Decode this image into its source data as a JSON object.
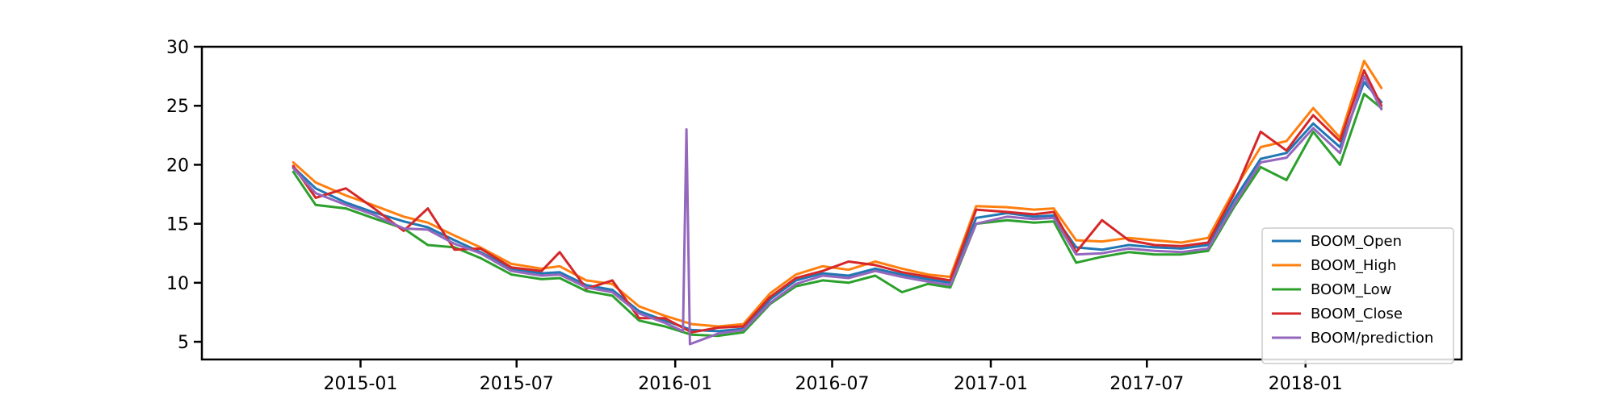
{
  "chart_data": {
    "type": "line",
    "x_axis": {
      "type": "date",
      "range": [
        "2014-07-01",
        "2018-07-01"
      ],
      "ticks": [
        "2015-01",
        "2015-07",
        "2016-01",
        "2016-07",
        "2017-01",
        "2017-07",
        "2018-01"
      ]
    },
    "y_axis": {
      "range": [
        3.5,
        30
      ],
      "ticks": [
        5,
        10,
        15,
        20,
        25,
        30
      ]
    },
    "grid": false,
    "legend_position": "bottom-right",
    "series": [
      {
        "name": "BOOM_Open",
        "color": "#1f77b4",
        "points": [
          [
            "2014-10-15",
            19.8
          ],
          [
            "2014-11-10",
            18.0
          ],
          [
            "2014-12-15",
            16.8
          ],
          [
            "2015-01-15",
            16.0
          ],
          [
            "2015-02-20",
            15.2
          ],
          [
            "2015-03-20",
            14.7
          ],
          [
            "2015-04-20",
            13.6
          ],
          [
            "2015-05-20",
            12.6
          ],
          [
            "2015-06-25",
            11.2
          ],
          [
            "2015-07-30",
            10.8
          ],
          [
            "2015-08-20",
            10.9
          ],
          [
            "2015-09-20",
            9.8
          ],
          [
            "2015-10-20",
            9.4
          ],
          [
            "2015-11-20",
            7.6
          ],
          [
            "2015-12-20",
            6.8
          ],
          [
            "2016-01-20",
            6.0
          ],
          [
            "2016-02-20",
            5.9
          ],
          [
            "2016-03-20",
            6.1
          ],
          [
            "2016-04-20",
            8.6
          ],
          [
            "2016-05-20",
            10.2
          ],
          [
            "2016-06-20",
            10.8
          ],
          [
            "2016-07-20",
            10.6
          ],
          [
            "2016-08-20",
            11.2
          ],
          [
            "2016-09-20",
            10.7
          ],
          [
            "2016-10-20",
            10.3
          ],
          [
            "2016-11-15",
            10.0
          ],
          [
            "2016-12-15",
            15.5
          ],
          [
            "2017-01-20",
            15.9
          ],
          [
            "2017-02-20",
            15.6
          ],
          [
            "2017-03-15",
            15.7
          ],
          [
            "2017-04-10",
            13.0
          ],
          [
            "2017-05-10",
            12.8
          ],
          [
            "2017-06-10",
            13.2
          ],
          [
            "2017-07-10",
            13.0
          ],
          [
            "2017-08-10",
            12.9
          ],
          [
            "2017-09-10",
            13.2
          ],
          [
            "2017-10-10",
            17.0
          ],
          [
            "2017-11-10",
            20.5
          ],
          [
            "2017-12-10",
            21.0
          ],
          [
            "2018-01-10",
            23.5
          ],
          [
            "2018-02-10",
            21.5
          ],
          [
            "2018-03-10",
            27.0
          ],
          [
            "2018-03-30",
            25.3
          ]
        ]
      },
      {
        "name": "BOOM_High",
        "color": "#ff7f0e",
        "points": [
          [
            "2014-10-15",
            20.2
          ],
          [
            "2014-11-10",
            18.5
          ],
          [
            "2014-12-15",
            17.4
          ],
          [
            "2015-01-15",
            16.6
          ],
          [
            "2015-02-20",
            15.6
          ],
          [
            "2015-03-20",
            15.1
          ],
          [
            "2015-04-20",
            14.0
          ],
          [
            "2015-05-20",
            13.0
          ],
          [
            "2015-06-25",
            11.6
          ],
          [
            "2015-07-30",
            11.2
          ],
          [
            "2015-08-20",
            11.4
          ],
          [
            "2015-09-20",
            10.2
          ],
          [
            "2015-10-20",
            9.9
          ],
          [
            "2015-11-20",
            8.0
          ],
          [
            "2015-12-20",
            7.2
          ],
          [
            "2016-01-20",
            6.5
          ],
          [
            "2016-02-20",
            6.3
          ],
          [
            "2016-03-20",
            6.5
          ],
          [
            "2016-04-20",
            9.1
          ],
          [
            "2016-05-20",
            10.7
          ],
          [
            "2016-06-20",
            11.4
          ],
          [
            "2016-07-20",
            11.1
          ],
          [
            "2016-08-20",
            11.8
          ],
          [
            "2016-09-20",
            11.2
          ],
          [
            "2016-10-20",
            10.7
          ],
          [
            "2016-11-15",
            10.5
          ],
          [
            "2016-12-15",
            16.5
          ],
          [
            "2017-01-20",
            16.4
          ],
          [
            "2017-02-20",
            16.2
          ],
          [
            "2017-03-15",
            16.3
          ],
          [
            "2017-04-10",
            13.6
          ],
          [
            "2017-05-10",
            13.5
          ],
          [
            "2017-06-10",
            13.8
          ],
          [
            "2017-07-10",
            13.6
          ],
          [
            "2017-08-10",
            13.4
          ],
          [
            "2017-09-10",
            13.8
          ],
          [
            "2017-10-10",
            17.8
          ],
          [
            "2017-11-10",
            21.5
          ],
          [
            "2017-12-10",
            22.0
          ],
          [
            "2018-01-10",
            24.8
          ],
          [
            "2018-02-10",
            22.3
          ],
          [
            "2018-03-10",
            28.8
          ],
          [
            "2018-03-30",
            26.5
          ]
        ]
      },
      {
        "name": "BOOM_Low",
        "color": "#2ca02c",
        "points": [
          [
            "2014-10-15",
            19.4
          ],
          [
            "2014-11-10",
            16.6
          ],
          [
            "2014-12-15",
            16.3
          ],
          [
            "2015-01-15",
            15.5
          ],
          [
            "2015-02-20",
            14.6
          ],
          [
            "2015-03-20",
            13.2
          ],
          [
            "2015-04-20",
            13.0
          ],
          [
            "2015-05-20",
            12.1
          ],
          [
            "2015-06-25",
            10.7
          ],
          [
            "2015-07-30",
            10.3
          ],
          [
            "2015-08-20",
            10.4
          ],
          [
            "2015-09-20",
            9.3
          ],
          [
            "2015-10-20",
            8.9
          ],
          [
            "2015-11-20",
            6.8
          ],
          [
            "2015-12-20",
            6.3
          ],
          [
            "2016-01-20",
            5.6
          ],
          [
            "2016-02-20",
            5.5
          ],
          [
            "2016-03-20",
            5.8
          ],
          [
            "2016-04-20",
            8.2
          ],
          [
            "2016-05-20",
            9.7
          ],
          [
            "2016-06-20",
            10.2
          ],
          [
            "2016-07-20",
            10.0
          ],
          [
            "2016-08-20",
            10.6
          ],
          [
            "2016-09-20",
            9.2
          ],
          [
            "2016-10-20",
            9.9
          ],
          [
            "2016-11-15",
            9.6
          ],
          [
            "2016-12-15",
            15.0
          ],
          [
            "2017-01-20",
            15.3
          ],
          [
            "2017-02-20",
            15.1
          ],
          [
            "2017-03-15",
            15.2
          ],
          [
            "2017-04-10",
            11.7
          ],
          [
            "2017-05-10",
            12.2
          ],
          [
            "2017-06-10",
            12.6
          ],
          [
            "2017-07-10",
            12.4
          ],
          [
            "2017-08-10",
            12.4
          ],
          [
            "2017-09-10",
            12.7
          ],
          [
            "2017-10-10",
            16.4
          ],
          [
            "2017-11-10",
            19.8
          ],
          [
            "2017-12-10",
            18.7
          ],
          [
            "2018-01-10",
            22.8
          ],
          [
            "2018-02-10",
            20.0
          ],
          [
            "2018-03-10",
            26.0
          ],
          [
            "2018-03-30",
            24.8
          ]
        ]
      },
      {
        "name": "BOOM_Close",
        "color": "#d62728",
        "points": [
          [
            "2014-10-15",
            19.9
          ],
          [
            "2014-11-10",
            17.2
          ],
          [
            "2014-12-15",
            18.0
          ],
          [
            "2015-01-15",
            16.4
          ],
          [
            "2015-02-20",
            14.4
          ],
          [
            "2015-03-20",
            16.3
          ],
          [
            "2015-04-20",
            12.8
          ],
          [
            "2015-05-20",
            12.9
          ],
          [
            "2015-06-25",
            11.3
          ],
          [
            "2015-07-30",
            11.0
          ],
          [
            "2015-08-20",
            12.6
          ],
          [
            "2015-09-20",
            9.5
          ],
          [
            "2015-10-20",
            10.2
          ],
          [
            "2015-11-20",
            7.0
          ],
          [
            "2015-12-20",
            7.0
          ],
          [
            "2016-01-20",
            5.8
          ],
          [
            "2016-02-20",
            6.2
          ],
          [
            "2016-03-20",
            6.3
          ],
          [
            "2016-04-20",
            8.8
          ],
          [
            "2016-05-20",
            10.4
          ],
          [
            "2016-06-20",
            11.0
          ],
          [
            "2016-07-20",
            11.8
          ],
          [
            "2016-08-20",
            11.5
          ],
          [
            "2016-09-20",
            10.9
          ],
          [
            "2016-10-20",
            10.5
          ],
          [
            "2016-11-15",
            10.2
          ],
          [
            "2016-12-15",
            16.2
          ],
          [
            "2017-01-20",
            16.0
          ],
          [
            "2017-02-20",
            15.8
          ],
          [
            "2017-03-15",
            16.0
          ],
          [
            "2017-04-10",
            12.6
          ],
          [
            "2017-05-10",
            15.3
          ],
          [
            "2017-06-10",
            13.6
          ],
          [
            "2017-07-10",
            13.2
          ],
          [
            "2017-08-10",
            13.1
          ],
          [
            "2017-09-10",
            13.4
          ],
          [
            "2017-10-10",
            17.5
          ],
          [
            "2017-11-10",
            22.8
          ],
          [
            "2017-12-10",
            21.2
          ],
          [
            "2018-01-10",
            24.2
          ],
          [
            "2018-02-10",
            22.0
          ],
          [
            "2018-03-10",
            28.0
          ],
          [
            "2018-03-30",
            25.0
          ]
        ]
      },
      {
        "name": "BOOM/prediction",
        "color": "#9467bd",
        "points": [
          [
            "2014-10-15",
            19.7
          ],
          [
            "2014-11-10",
            17.6
          ],
          [
            "2014-12-15",
            16.6
          ],
          [
            "2015-01-15",
            15.8
          ],
          [
            "2015-02-20",
            14.6
          ],
          [
            "2015-03-20",
            14.5
          ],
          [
            "2015-04-20",
            13.3
          ],
          [
            "2015-05-20",
            12.5
          ],
          [
            "2015-06-25",
            11.0
          ],
          [
            "2015-07-30",
            10.6
          ],
          [
            "2015-08-20",
            10.7
          ],
          [
            "2015-09-20",
            9.6
          ],
          [
            "2015-10-20",
            9.2
          ],
          [
            "2015-11-20",
            7.4
          ],
          [
            "2015-12-20",
            6.6
          ],
          [
            "2016-01-10",
            5.9
          ],
          [
            "2016-01-14",
            23.0
          ],
          [
            "2016-01-18",
            4.8
          ],
          [
            "2016-02-20",
            5.7
          ],
          [
            "2016-03-20",
            6.0
          ],
          [
            "2016-04-20",
            8.3
          ],
          [
            "2016-05-20",
            9.9
          ],
          [
            "2016-06-20",
            10.6
          ],
          [
            "2016-07-20",
            10.4
          ],
          [
            "2016-08-20",
            11.0
          ],
          [
            "2016-09-20",
            10.5
          ],
          [
            "2016-10-20",
            10.1
          ],
          [
            "2016-11-15",
            9.8
          ],
          [
            "2016-12-15",
            15.0
          ],
          [
            "2017-01-20",
            15.6
          ],
          [
            "2017-02-20",
            15.4
          ],
          [
            "2017-03-15",
            15.5
          ],
          [
            "2017-04-10",
            12.4
          ],
          [
            "2017-05-10",
            12.5
          ],
          [
            "2017-06-10",
            12.9
          ],
          [
            "2017-07-10",
            12.7
          ],
          [
            "2017-08-10",
            12.6
          ],
          [
            "2017-09-10",
            12.9
          ],
          [
            "2017-10-10",
            16.6
          ],
          [
            "2017-11-10",
            20.2
          ],
          [
            "2017-12-10",
            20.6
          ],
          [
            "2018-01-10",
            23.1
          ],
          [
            "2018-02-10",
            21.0
          ],
          [
            "2018-03-10",
            27.5
          ],
          [
            "2018-03-30",
            24.7
          ]
        ]
      }
    ]
  }
}
